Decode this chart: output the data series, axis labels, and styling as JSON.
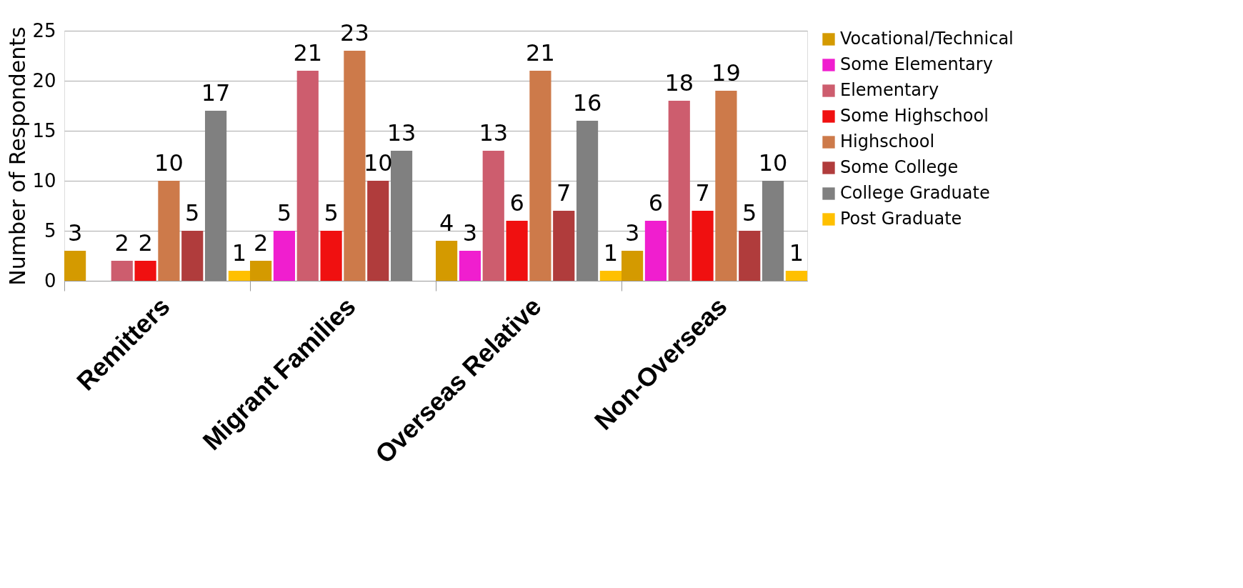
{
  "chart_data": {
    "type": "bar",
    "ylabel": "Number of Respondents",
    "categories": [
      "Remitters",
      "Migrant Families",
      "Overseas Relative",
      "Non-Overseas"
    ],
    "series": [
      {
        "name": "Vocational/Technical",
        "color": "#d49a00",
        "values": [
          3,
          2,
          4,
          3
        ]
      },
      {
        "name": "Some Elementary",
        "color": "#f01ecf",
        "values": [
          null,
          5,
          3,
          6
        ]
      },
      {
        "name": "Elementary",
        "color": "#cd5d6e",
        "values": [
          2,
          21,
          13,
          18
        ]
      },
      {
        "name": "Some Highschool",
        "color": "#f01010",
        "values": [
          2,
          5,
          6,
          7
        ]
      },
      {
        "name": "Highschool",
        "color": "#cd7a4a",
        "values": [
          10,
          23,
          21,
          19
        ]
      },
      {
        "name": "Some College",
        "color": "#b03c3c",
        "values": [
          5,
          10,
          7,
          5
        ]
      },
      {
        "name": "College Graduate",
        "color": "#808080",
        "values": [
          17,
          13,
          16,
          10
        ]
      },
      {
        "name": "Post Graduate",
        "color": "#ffc000",
        "values": [
          1,
          null,
          1,
          1
        ]
      }
    ],
    "ylim": [
      0,
      25
    ],
    "yticks": [
      0,
      5,
      10,
      15,
      20,
      25
    ],
    "grid": "y",
    "legend": "right",
    "data_labels": true
  }
}
